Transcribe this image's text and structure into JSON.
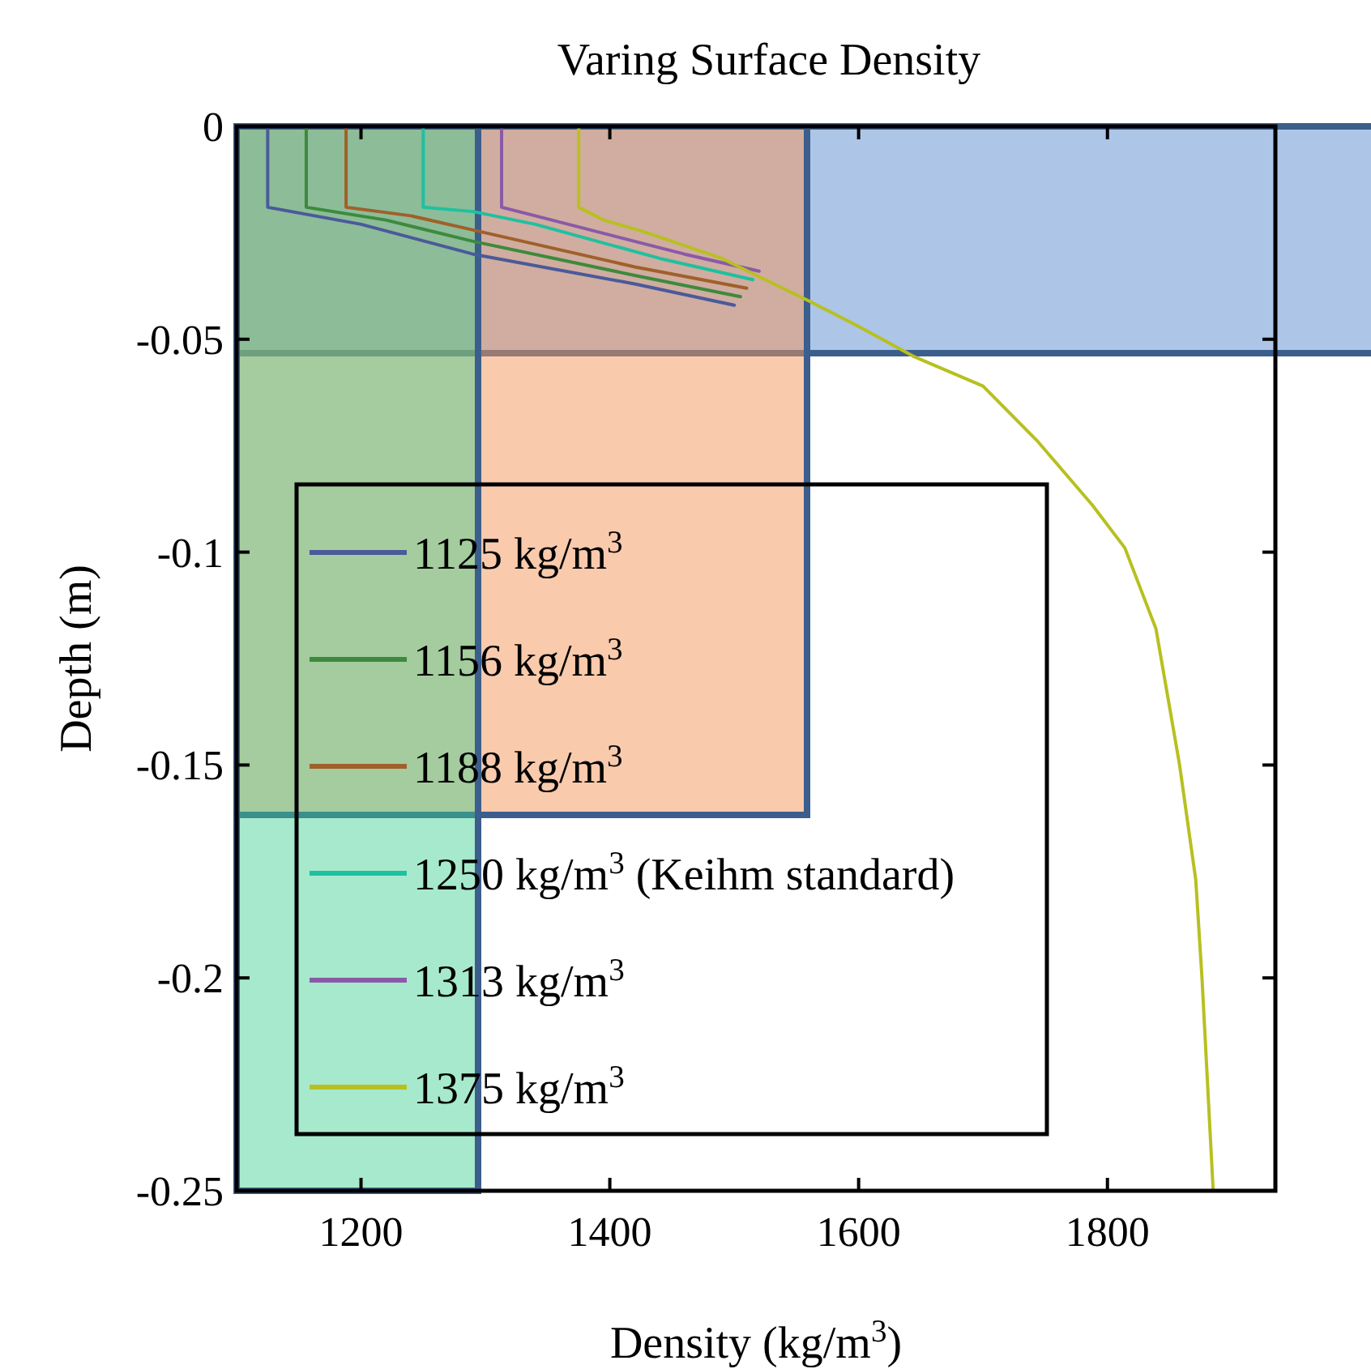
{
  "chart_data": {
    "type": "line",
    "title": "Varing Surface Density",
    "xlabel": "Density (kg/m$^{3}$)",
    "ylabel": "Depth (m)",
    "xlim": [
      1100,
      1935
    ],
    "xticks": [
      1200,
      1400,
      1600,
      1800
    ],
    "ylim": [
      -0.25,
      0
    ],
    "yticks": [
      0,
      -0.05,
      -0.1,
      -0.15,
      -0.2,
      -0.25
    ],
    "grid": false,
    "legend": "center",
    "marker": "none",
    "line_style": "solid",
    "series": [
      {
        "name": "1125 kg/m$^{3}$",
        "color": "#4a5a9a",
        "x": [
          1125,
          1125,
          1200,
          1290,
          1420,
          1500
        ],
        "values": [
          0,
          -0.019,
          -0.023,
          -0.03,
          -0.037,
          -0.042
        ]
      },
      {
        "name": "1156 kg/m$^{3}$",
        "color": "#3d8a3d",
        "x": [
          1156,
          1156,
          1220,
          1290,
          1420,
          1505
        ],
        "values": [
          0,
          -0.019,
          -0.022,
          -0.027,
          -0.035,
          -0.04
        ]
      },
      {
        "name": "1188 kg/m$^{3}$",
        "color": "#a0602a",
        "x": [
          1188,
          1188,
          1240,
          1300,
          1420,
          1510
        ],
        "values": [
          0,
          -0.019,
          -0.021,
          -0.025,
          -0.033,
          -0.038
        ]
      },
      {
        "name": "1250 kg/m$^{3}$ (Keihm standard)",
        "color": "#1fc0a0",
        "x": [
          1250,
          1250,
          1290,
          1340,
          1440,
          1515
        ],
        "values": [
          0,
          -0.019,
          -0.02,
          -0.023,
          -0.031,
          -0.036
        ]
      },
      {
        "name": "1313 kg/m$^{3}$",
        "color": "#8a5aa8",
        "x": [
          1313,
          1313,
          1340,
          1380,
          1460,
          1520
        ],
        "values": [
          0,
          -0.019,
          -0.021,
          -0.024,
          -0.03,
          -0.034
        ]
      },
      {
        "name": "1375 kg/m$^{3}$",
        "color": "#b8c020",
        "x": [
          1375,
          1375,
          1395,
          1430,
          1490,
          1560,
          1600,
          1644,
          1700,
          1744,
          1788,
          1814,
          1839,
          1858,
          1871,
          1876,
          1885
        ],
        "values": [
          0,
          -0.019,
          -0.022,
          -0.025,
          -0.031,
          -0.041,
          -0.047,
          -0.054,
          -0.061,
          -0.074,
          -0.089,
          -0.099,
          -0.118,
          -0.15,
          -0.177,
          -0.2,
          -0.25
        ]
      }
    ]
  }
}
